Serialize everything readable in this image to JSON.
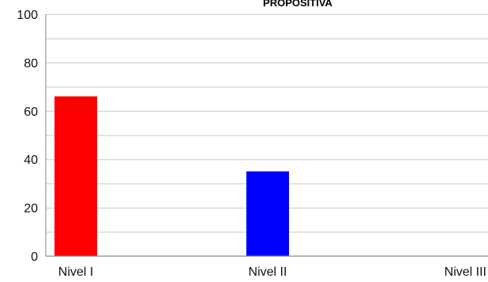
{
  "chart_data": {
    "type": "bar",
    "title": "PROPOSITIVA",
    "categories": [
      "Nivel I",
      "Nivel II",
      "Nivel III"
    ],
    "values": [
      66,
      35,
      0
    ],
    "colors": [
      "#ff0000",
      "#0000ff",
      "#00aa00"
    ],
    "ylim": [
      0,
      100
    ],
    "yticks": [
      "0",
      "20",
      "40",
      "60",
      "80",
      "100"
    ],
    "ytick_values": [
      0,
      20,
      40,
      60,
      80,
      100
    ],
    "minor_gridlines_step": 10,
    "grid": true,
    "legend": "none"
  }
}
